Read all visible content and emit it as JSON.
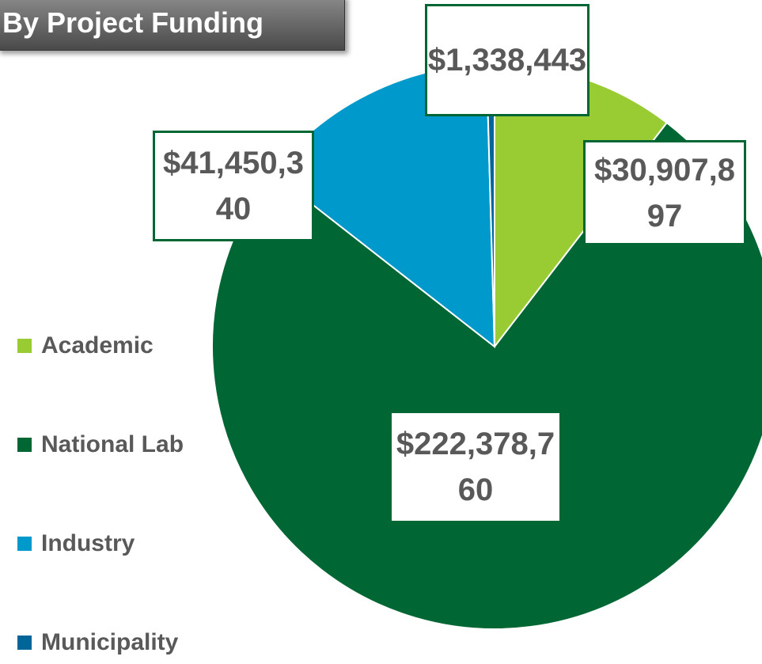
{
  "chart_data": {
    "type": "pie",
    "title": "By Project Funding",
    "categories": [
      "Academic",
      "National Lab",
      "Industry",
      "Municipality"
    ],
    "values": [
      30907897,
      222378760,
      41450340,
      1338443
    ],
    "value_labels": [
      "$30,907,897",
      "$222,378,760",
      "$41,450,340",
      "$1,338,443"
    ],
    "colors": [
      "#99cc33",
      "#006633",
      "#0099cc",
      "#006699"
    ],
    "legend": "left"
  }
}
